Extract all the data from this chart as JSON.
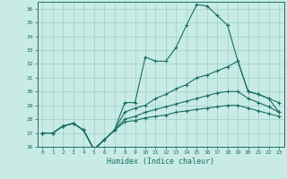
{
  "xlabel": "Humidex (Indice chaleur)",
  "ylabel": "",
  "xlim": [
    -0.5,
    23.5
  ],
  "ylim": [
    26,
    36.5
  ],
  "yticks": [
    26,
    27,
    28,
    29,
    30,
    31,
    32,
    33,
    34,
    35,
    36
  ],
  "xticks": [
    0,
    1,
    2,
    3,
    4,
    5,
    6,
    7,
    8,
    9,
    10,
    11,
    12,
    13,
    14,
    15,
    16,
    17,
    18,
    19,
    20,
    21,
    22,
    23
  ],
  "bg_color": "#c8ebe6",
  "grid_color": "#9dcfc8",
  "line_color": "#1a6e62",
  "series": [
    [
      27.0,
      27.0,
      27.5,
      27.7,
      27.2,
      25.8,
      26.5,
      27.2,
      29.2,
      29.2,
      32.5,
      32.2,
      32.2,
      33.2,
      34.8,
      36.3,
      36.2,
      35.5,
      34.8,
      32.2,
      30.0,
      29.8,
      29.5,
      29.2
    ],
    [
      27.0,
      27.0,
      27.5,
      27.7,
      27.2,
      25.8,
      26.5,
      27.2,
      28.5,
      28.8,
      29.0,
      29.5,
      29.8,
      30.2,
      30.5,
      31.0,
      31.2,
      31.5,
      31.8,
      32.2,
      30.0,
      29.8,
      29.5,
      28.5
    ],
    [
      27.0,
      27.0,
      27.5,
      27.7,
      27.2,
      25.8,
      26.5,
      27.2,
      28.0,
      28.2,
      28.5,
      28.7,
      28.9,
      29.1,
      29.3,
      29.5,
      29.7,
      29.9,
      30.0,
      30.0,
      29.5,
      29.2,
      28.9,
      28.5
    ],
    [
      27.0,
      27.0,
      27.5,
      27.7,
      27.2,
      25.8,
      26.5,
      27.2,
      27.8,
      27.9,
      28.1,
      28.2,
      28.3,
      28.5,
      28.6,
      28.7,
      28.8,
      28.9,
      29.0,
      29.0,
      28.8,
      28.6,
      28.4,
      28.2
    ]
  ]
}
